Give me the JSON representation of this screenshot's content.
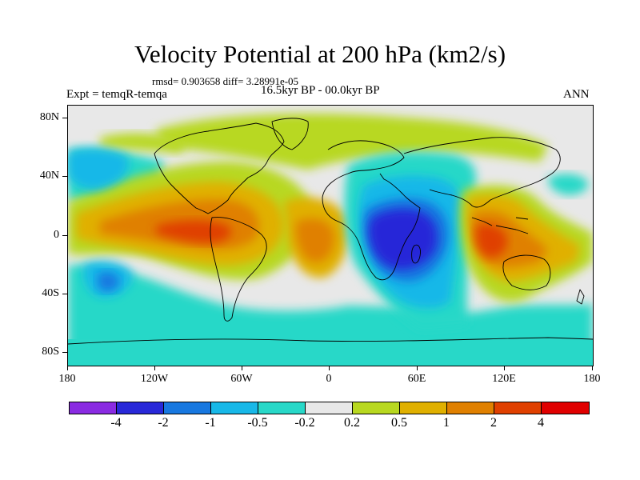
{
  "header": {
    "title": "Velocity Potential at 200 hPa (km2/s)",
    "stats": "rmsd= 0.903658 diff= 3.28991e-05",
    "experiment": "Expt = temqR-temqa",
    "period": "16.5kyr BP - 00.0kyr BP",
    "season": "ANN"
  },
  "map": {
    "lat_labels": [
      "80N",
      "40N",
      "0",
      "40S",
      "80S"
    ],
    "lon_labels": [
      "180",
      "120W",
      "60W",
      "0",
      "60E",
      "120E",
      "180"
    ]
  },
  "colorbar": {
    "colors": [
      "#8a2be2",
      "#2828d8",
      "#1878e0",
      "#18b8e8",
      "#28d8c8",
      "#e8e8e8",
      "#b8d820",
      "#e0b000",
      "#e08000",
      "#e04000",
      "#e00000"
    ],
    "labels": [
      "-4",
      "-2",
      "-1",
      "-0.5",
      "-0.2",
      "0.2",
      "0.5",
      "1",
      "2",
      "4"
    ]
  }
}
